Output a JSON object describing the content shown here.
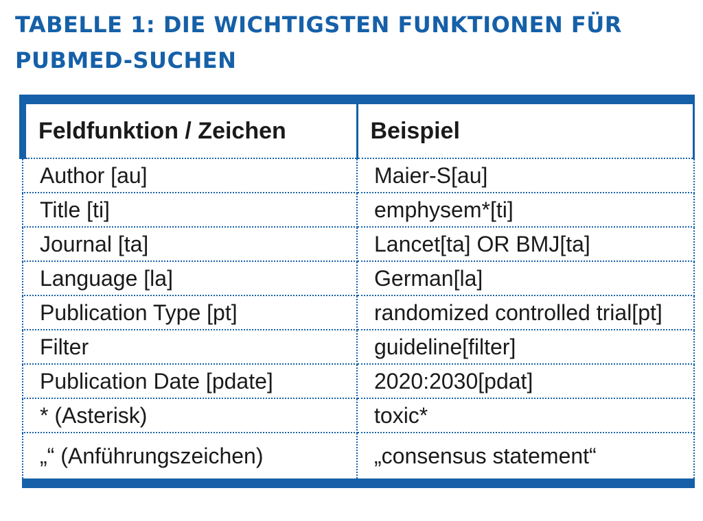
{
  "header": {
    "title": "TABELLE 1: DIE WICHTIGSTEN FUNKTIONEN FÜR PUBMED-SUCHEN"
  },
  "table": {
    "columns": [
      "Feldfunktion / Zeichen",
      "Beispiel"
    ],
    "rows": [
      [
        "Author [au]",
        "Maier-S[au]"
      ],
      [
        "Title [ti]",
        "emphysem*[ti]"
      ],
      [
        "Journal [ta]",
        "Lancet[ta] OR BMJ[ta]"
      ],
      [
        "Language [la]",
        "German[la]"
      ],
      [
        "Publication Type [pt]",
        "randomized controlled trial[pt]"
      ],
      [
        "Filter",
        "guideline[filter]"
      ],
      [
        "Publication Date [pdate]",
        "2020:2030[pdat]"
      ],
      [
        "* (Asterisk)",
        "toxic*"
      ],
      [
        "„“ (Anführungszeichen)",
        "„consensus statement“"
      ]
    ]
  }
}
